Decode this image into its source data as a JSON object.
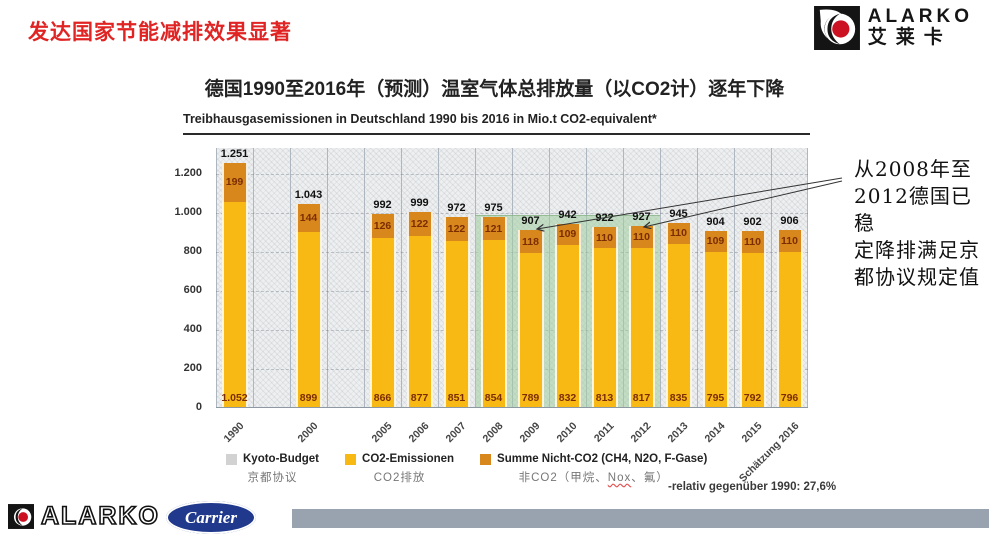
{
  "header": {
    "title": "发达国家节能减排效果显著",
    "title_color": "#E02424"
  },
  "brand": {
    "name": "ALARKO",
    "name_cn": "艾莱卡"
  },
  "chart_data": {
    "type": "bar",
    "stacked": true,
    "title": "德国1990至2016年（预测）温室气体总排放量（以CO2计）逐年下降",
    "subtitle": "Treibhausgasemissionen in Deutschland 1990 bis 2016 in Mio.t CO2-equivalent*",
    "categories": [
      "1990",
      "2000",
      "2005",
      "2006",
      "2007",
      "2008",
      "2009",
      "2010",
      "2011",
      "2012",
      "2013",
      "2014",
      "2015",
      "Schätzung 2016"
    ],
    "column_index": [
      0,
      2,
      4,
      5,
      6,
      7,
      8,
      9,
      10,
      11,
      12,
      13,
      14,
      15
    ],
    "total_columns": 16,
    "series": [
      {
        "name": "CO2-Emissionen",
        "name_cn": "CO2排放",
        "color": "#F9B915",
        "values": [
          1052,
          899,
          866,
          877,
          851,
          854,
          789,
          832,
          813,
          817,
          835,
          795,
          792,
          796
        ],
        "labels": [
          "1.052",
          "899",
          "866",
          "877",
          "851",
          "854",
          "789",
          "832",
          "813",
          "817",
          "835",
          "795",
          "792",
          "796"
        ]
      },
      {
        "name": "Summe Nicht-CO2 (CH4, N2O, F-Gase)",
        "name_cn": "非CO2（甲烷、Nox、氟）",
        "color": "#D8871D",
        "values": [
          199,
          144,
          126,
          122,
          122,
          121,
          118,
          109,
          110,
          110,
          110,
          109,
          110,
          110
        ],
        "labels": [
          "199",
          "144",
          "126",
          "122",
          "122",
          "121",
          "118",
          "109",
          "110",
          "110",
          "110",
          "109",
          "110",
          "110"
        ]
      }
    ],
    "totals": [
      "1.251",
      "1.043",
      "992",
      "999",
      "972",
      "975",
      "907",
      "942",
      "922",
      "927",
      "945",
      "904",
      "902",
      "906"
    ],
    "yticks": [
      {
        "label": "0",
        "value": 0
      },
      {
        "label": "200",
        "value": 200
      },
      {
        "label": "400",
        "value": 400
      },
      {
        "label": "600",
        "value": 600
      },
      {
        "label": "800",
        "value": 800
      },
      {
        "label": "1.000",
        "value": 1000
      },
      {
        "label": "1.200",
        "value": 1200
      }
    ],
    "ylim": [
      0,
      1333
    ],
    "grid": true,
    "legend_position": "bottom",
    "legend": [
      {
        "label": "Kyoto-Budget",
        "label_cn": "京都协议",
        "color": "#D2D2D2",
        "cn_parts": [
          "京都协议"
        ]
      },
      {
        "label": "CO2-Emissionen",
        "label_cn": "CO2排放",
        "color": "#F9B915",
        "cn_parts": [
          "CO2排放"
        ]
      },
      {
        "label": "Summe Nicht-CO2 (CH4, N2O, F-Gase)",
        "label_cn": "非CO2（甲烷、Nox、氟）",
        "color": "#D8871D",
        "cn_parts": [
          "非CO2（甲烷、",
          "Nox",
          "、氟）"
        ]
      }
    ],
    "highlight": {
      "from_category": "2008",
      "to_category": "2012",
      "color": "rgba(160,205,160,0.55)"
    },
    "note": "-relativ gegenüber 1990: 27,6%",
    "annotation_lines": [
      "从2008年至",
      "2012德国已稳",
      "定降排满足京",
      "都协议规定值"
    ],
    "segment_label_color": "#7B2D00"
  },
  "footer": {
    "alarko": "ALARKO",
    "carrier": "Carrier",
    "carrier_color": "#20398C",
    "bar_color": "#98A3AF"
  }
}
